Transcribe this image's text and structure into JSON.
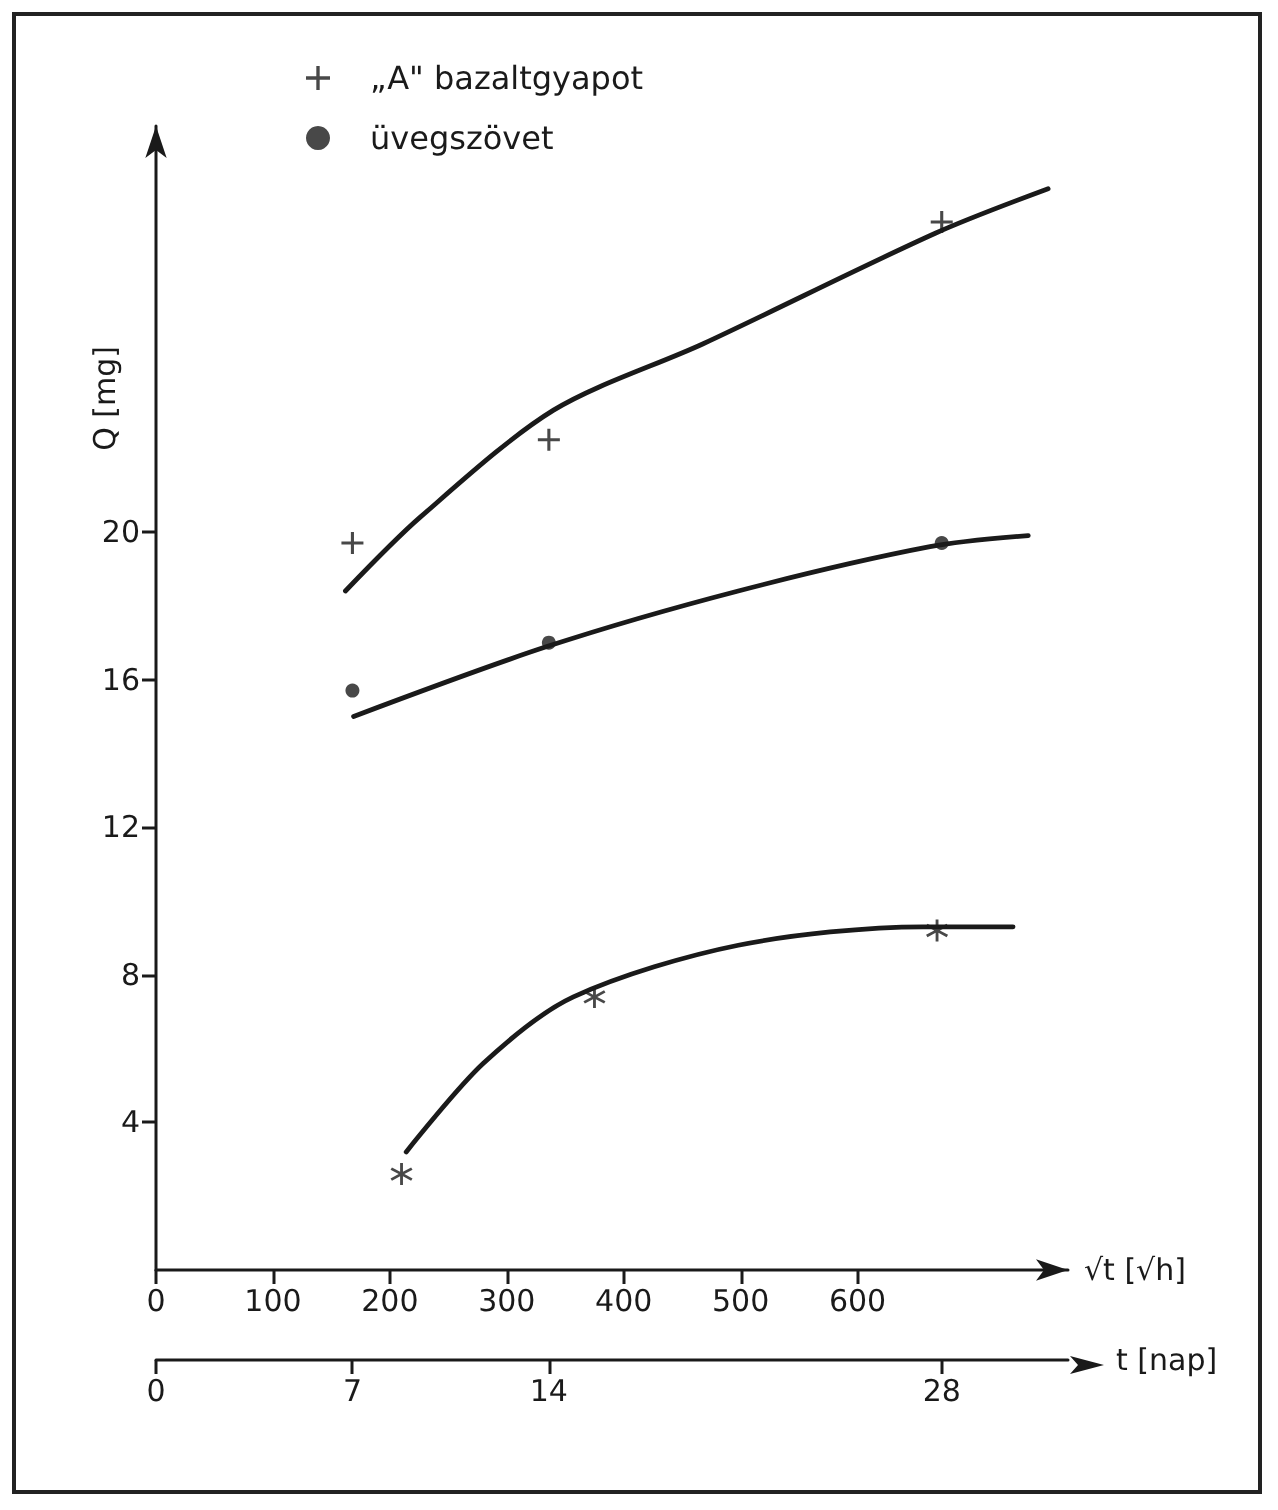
{
  "chart_data": {
    "type": "scatter",
    "xlabel": "√t [√h]",
    "x2label": "t [nap]",
    "ylabel": "Q [mg]",
    "xlim": [
      0,
      780
    ],
    "xticks": [
      0,
      100,
      200,
      300,
      400,
      500,
      600
    ],
    "x2lim": [
      0,
      32.5
    ],
    "x2ticks": [
      0,
      7,
      14,
      28
    ],
    "ylim": [
      0,
      31
    ],
    "yticks": [
      4,
      8,
      12,
      16,
      20
    ],
    "grid": false,
    "legend": "top left",
    "series": [
      {
        "name": "„A\" bazaltgyapot",
        "color": "#1a1a1a",
        "marker": "cross",
        "x": [
          168,
          336,
          672
        ],
        "values": [
          19.7,
          22.5,
          28.4
        ]
      },
      {
        "name": "üvegszövet",
        "color": "#1a1a1a",
        "marker": "circle",
        "x": [
          168,
          336,
          672
        ],
        "values": [
          15.7,
          17.0,
          19.7
        ]
      },
      {
        "color": "#1a1a1a",
        "marker": "star",
        "x": [
          210,
          375,
          668
        ],
        "values": [
          2.6,
          7.4,
          9.2
        ]
      },
      {
        "type": "line",
        "color": "#1a1a1a",
        "marker": "none",
        "line_style": "solid",
        "x": [
          162,
          226,
          340,
          468,
          667,
          763
        ],
        "values": [
          18.4,
          20.4,
          23.3,
          25.1,
          28.1,
          29.3
        ]
      },
      {
        "type": "line",
        "color": "#1a1a1a",
        "marker": "none",
        "line_style": "solid",
        "x": [
          169,
          335,
          498,
          662,
          746
        ],
        "values": [
          15.0,
          16.9,
          18.4,
          19.6,
          19.9
        ]
      },
      {
        "type": "line",
        "color": "#1a1a1a",
        "marker": "none",
        "line_style": "solid",
        "x": [
          214,
          280,
          357,
          498,
          656,
          733
        ],
        "values": [
          3.2,
          5.6,
          7.4,
          8.8,
          9.3,
          9.3
        ]
      }
    ]
  }
}
